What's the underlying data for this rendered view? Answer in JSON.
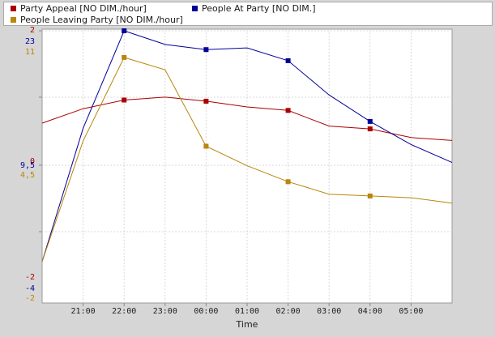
{
  "chart_data": {
    "type": "line",
    "title": "",
    "xlabel": "Time",
    "x": [
      "20:00",
      "21:00",
      "22:00",
      "23:00",
      "00:00",
      "01:00",
      "02:00",
      "03:00",
      "04:00",
      "05:00",
      "06:00"
    ],
    "x_tick_labels": [
      "21:00",
      "22:00",
      "23:00",
      "00:00",
      "01:00",
      "02:00",
      "03:00",
      "04:00",
      "05:00"
    ],
    "grid": true,
    "legend_position": "top",
    "series": [
      {
        "name": "Party Appeal [NO DIM./hour]",
        "color": "#aa0000",
        "axis_ticks": [
          "2",
          "0",
          "-2"
        ],
        "ylim": [
          -2,
          2
        ],
        "values": [
          0.4,
          0.65,
          0.8,
          0.85,
          0.78,
          0.68,
          0.62,
          0.35,
          0.3,
          0.15,
          0.1
        ],
        "marker_x": [
          "22:00",
          "00:00",
          "02:00",
          "04:00"
        ]
      },
      {
        "name": "People At Party [NO DIM.]",
        "color": "#000099",
        "axis_ticks": [
          "23",
          "9,5",
          "-4"
        ],
        "ylim": [
          -4,
          23
        ],
        "values": [
          -4.0,
          11.6,
          23.0,
          21.4,
          20.8,
          21.0,
          19.5,
          15.5,
          12.4,
          9.7,
          7.6
        ],
        "marker_x": [
          "22:00",
          "00:00",
          "02:00",
          "04:00"
        ]
      },
      {
        "name": "People Leaving Party [NO DIM./hour]",
        "color": "#b8860b",
        "axis_ticks": [
          "11",
          "4,5",
          "-2"
        ],
        "ylim": [
          -2,
          11
        ],
        "values": [
          -2.0,
          4.8,
          9.5,
          8.8,
          4.5,
          3.4,
          2.5,
          1.8,
          1.7,
          1.6,
          1.3
        ],
        "marker_x": [
          "22:00",
          "00:00",
          "02:00",
          "04:00"
        ]
      }
    ]
  }
}
